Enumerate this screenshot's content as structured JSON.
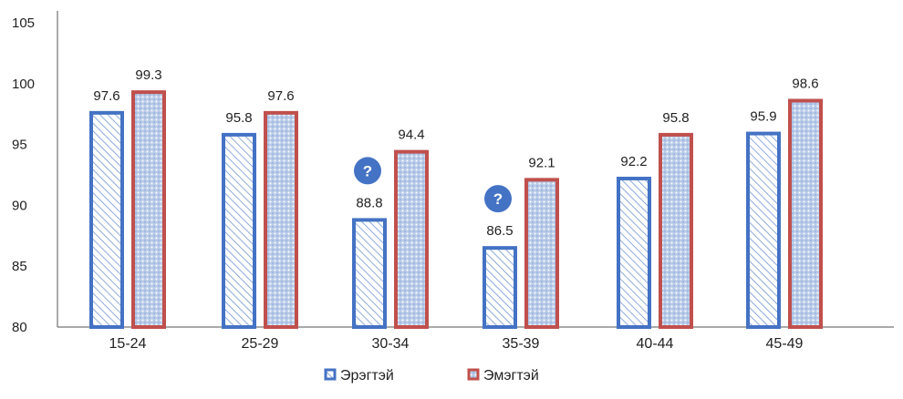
{
  "chart_data": {
    "type": "bar",
    "categories": [
      "15-24",
      "25-29",
      "30-34",
      "35-39",
      "40-44",
      "45-49"
    ],
    "series": [
      {
        "name": "Эрэгтэй",
        "values": [
          97.6,
          95.8,
          88.8,
          86.5,
          92.2,
          95.9
        ],
        "color": "#4472C4",
        "pattern": "diagonal-hatch"
      },
      {
        "name": "Эмэгтэй",
        "values": [
          99.3,
          97.6,
          94.4,
          92.1,
          95.8,
          98.6
        ],
        "color": "#C0504D",
        "pattern": "dotted-blue-fill"
      }
    ],
    "ylim": [
      80,
      105
    ],
    "yticks": [
      80,
      85,
      90,
      95,
      100,
      105
    ],
    "grid": false,
    "legend_position": "bottom",
    "annotations": [
      {
        "category": "30-34",
        "text": "?",
        "color": "#4472C4"
      },
      {
        "category": "35-39",
        "text": "?",
        "color": "#4472C4"
      }
    ]
  }
}
